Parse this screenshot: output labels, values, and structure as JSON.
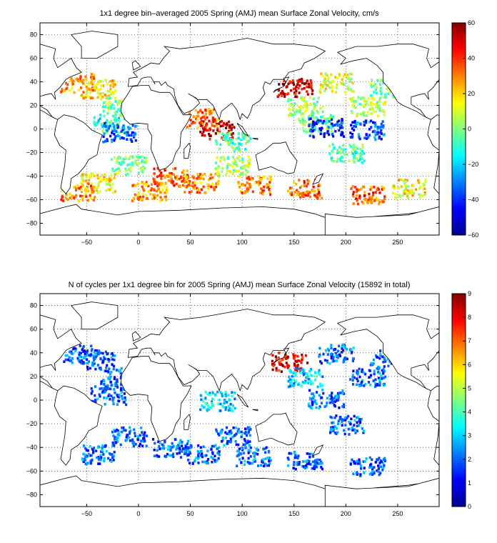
{
  "chart_data": [
    {
      "type": "heatmap",
      "title": "1x1 degree bin–averaged 2005 Spring (AMJ) mean Surface Zonal Velocity, cm/s",
      "xlabel": "",
      "ylabel": "",
      "xlim": [
        -95,
        290
      ],
      "ylim": [
        -90,
        90
      ],
      "x_ticks": [
        -50,
        0,
        50,
        100,
        150,
        200,
        250
      ],
      "y_ticks": [
        -80,
        -60,
        -40,
        -20,
        0,
        20,
        40,
        60,
        80
      ],
      "grid": true,
      "colormap": "jet",
      "colorbar": {
        "min": -60,
        "max": 60,
        "ticks": [
          -60,
          -40,
          -20,
          0,
          20,
          40,
          60
        ]
      },
      "regions": [
        {
          "lon": -40,
          "lat": 35,
          "value": 20
        },
        {
          "lon": -60,
          "lat": 40,
          "value": 25
        },
        {
          "lon": -20,
          "lat": 20,
          "value": 0
        },
        {
          "lon": -30,
          "lat": 5,
          "value": -10
        },
        {
          "lon": -20,
          "lat": -2,
          "value": -35
        },
        {
          "lon": -10,
          "lat": -30,
          "value": 0
        },
        {
          "lon": -40,
          "lat": -45,
          "value": 15
        },
        {
          "lon": -60,
          "lat": -52,
          "value": 28
        },
        {
          "lon": 10,
          "lat": -52,
          "value": 25
        },
        {
          "lon": 30,
          "lat": -40,
          "value": 35
        },
        {
          "lon": 60,
          "lat": -45,
          "value": 30
        },
        {
          "lon": 75,
          "lat": 0,
          "value": 50
        },
        {
          "lon": 60,
          "lat": 10,
          "value": 30
        },
        {
          "lon": 90,
          "lat": -10,
          "value": -5
        },
        {
          "lon": 90,
          "lat": -30,
          "value": 5
        },
        {
          "lon": 110,
          "lat": -47,
          "value": 30
        },
        {
          "lon": 150,
          "lat": 36,
          "value": 50
        },
        {
          "lon": 160,
          "lat": 20,
          "value": 5
        },
        {
          "lon": 170,
          "lat": 5,
          "value": 0
        },
        {
          "lon": 180,
          "lat": 2,
          "value": -40
        },
        {
          "lon": 220,
          "lat": 0,
          "value": -35
        },
        {
          "lon": 200,
          "lat": -20,
          "value": -5
        },
        {
          "lon": 220,
          "lat": 20,
          "value": 5
        },
        {
          "lon": 190,
          "lat": 40,
          "value": 10
        },
        {
          "lon": 160,
          "lat": -50,
          "value": 35
        },
        {
          "lon": 220,
          "lat": -55,
          "value": 35
        },
        {
          "lon": 260,
          "lat": -50,
          "value": 15
        },
        {
          "lon": 240,
          "lat": 35,
          "value": 0
        }
      ]
    },
    {
      "type": "heatmap",
      "title": "N of cycles per 1x1 degree bin for 2005 Spring (AMJ) mean Surface Zonal Velocity (15892 in total)",
      "xlabel": "",
      "ylabel": "",
      "xlim": [
        -95,
        290
      ],
      "ylim": [
        -90,
        90
      ],
      "x_ticks": [
        -50,
        0,
        50,
        100,
        150,
        200,
        250
      ],
      "y_ticks": [
        -80,
        -60,
        -40,
        -20,
        0,
        20,
        40,
        60,
        80
      ],
      "grid": true,
      "colormap": "jet",
      "colorbar": {
        "min": 0,
        "max": 9,
        "ticks": [
          0,
          1,
          2,
          3,
          4,
          5,
          6,
          7,
          8,
          9
        ]
      },
      "regions": [
        {
          "lon": -40,
          "lat": 35,
          "value": 2
        },
        {
          "lon": -60,
          "lat": 40,
          "value": 2
        },
        {
          "lon": -20,
          "lat": 20,
          "value": 2
        },
        {
          "lon": -30,
          "lat": 5,
          "value": 2
        },
        {
          "lon": -10,
          "lat": -30,
          "value": 2
        },
        {
          "lon": -40,
          "lat": -45,
          "value": 2
        },
        {
          "lon": 30,
          "lat": -40,
          "value": 2
        },
        {
          "lon": 60,
          "lat": -45,
          "value": 2
        },
        {
          "lon": 75,
          "lat": 0,
          "value": 3
        },
        {
          "lon": 90,
          "lat": -30,
          "value": 2
        },
        {
          "lon": 110,
          "lat": -47,
          "value": 2
        },
        {
          "lon": 145,
          "lat": 33,
          "value": 8
        },
        {
          "lon": 160,
          "lat": 20,
          "value": 3
        },
        {
          "lon": 180,
          "lat": 2,
          "value": 2
        },
        {
          "lon": 200,
          "lat": -20,
          "value": 2
        },
        {
          "lon": 220,
          "lat": 20,
          "value": 2
        },
        {
          "lon": 190,
          "lat": 40,
          "value": 2
        },
        {
          "lon": 160,
          "lat": -50,
          "value": 2
        },
        {
          "lon": 220,
          "lat": -55,
          "value": 2
        },
        {
          "lon": 240,
          "lat": 35,
          "value": 2
        }
      ]
    }
  ]
}
